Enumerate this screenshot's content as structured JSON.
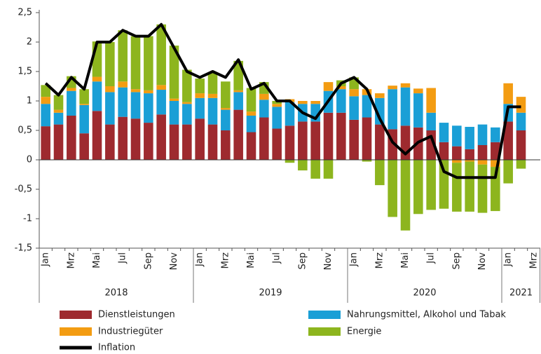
{
  "chart_data": {
    "type": "bar",
    "stacked": true,
    "categories": [
      "Jan",
      null,
      "Mrz",
      null,
      "Mai",
      null,
      "Jul",
      null,
      "Sep",
      null,
      "Nov",
      null,
      "Jan",
      null,
      "Mrz",
      null,
      "Mai",
      null,
      "Jul",
      null,
      "Sep",
      null,
      "Nov",
      null,
      "Jan",
      null,
      "Mrz",
      null,
      "Mai",
      null,
      "Jul",
      null,
      "Sep",
      null,
      "Nov",
      null,
      "Jan",
      null,
      "Mrz"
    ],
    "years": [
      "2018",
      "2019",
      "2020",
      "2021"
    ],
    "ylim": [
      -1.5,
      2.5
    ],
    "yticks": [
      {
        "value": -1.5,
        "label": "-1,5"
      },
      -1,
      {
        "value": -0.5,
        "label": "-0,5"
      },
      0,
      {
        "value": 0.5,
        "label": "0,5"
      },
      1,
      {
        "value": 1.5,
        "label": "1,5"
      },
      2,
      {
        "value": 2.5,
        "label": "2,5"
      }
    ],
    "grid": false,
    "series": [
      {
        "name": "Dienstleistungen",
        "color": "#9e2a2f",
        "values": [
          0.57,
          0.6,
          0.75,
          0.45,
          0.83,
          0.6,
          0.73,
          0.7,
          0.63,
          0.77,
          0.6,
          0.6,
          0.7,
          0.6,
          0.5,
          0.85,
          0.47,
          0.72,
          0.53,
          0.58,
          0.65,
          0.65,
          0.8,
          0.8,
          0.68,
          0.72,
          0.6,
          0.52,
          0.58,
          0.55,
          0.5,
          0.3,
          0.23,
          0.18,
          0.25,
          0.3,
          0.65,
          0.5,
          null
        ]
      },
      {
        "name": "Nahrungsmittel, Alkohol und Tabak",
        "color": "#1a9fd6",
        "values": [
          0.38,
          0.2,
          0.42,
          0.48,
          0.5,
          0.55,
          0.5,
          0.45,
          0.5,
          0.42,
          0.4,
          0.35,
          0.35,
          0.45,
          0.35,
          0.3,
          0.28,
          0.3,
          0.37,
          0.4,
          0.3,
          0.3,
          0.37,
          0.4,
          0.4,
          0.38,
          0.45,
          0.68,
          0.65,
          0.58,
          0.3,
          0.33,
          0.35,
          0.38,
          0.35,
          0.25,
          0.3,
          0.3,
          null
        ]
      },
      {
        "name": "Industriegüter",
        "color": "#f39c12",
        "values": [
          0.12,
          0.05,
          0.05,
          0.02,
          0.08,
          0.1,
          0.1,
          0.05,
          0.05,
          0.08,
          0.04,
          0.03,
          0.08,
          0.07,
          0.03,
          0.03,
          0.07,
          0.1,
          0.05,
          0.05,
          0.05,
          0.05,
          0.15,
          0.05,
          0.12,
          0.1,
          0.08,
          0.06,
          0.07,
          0.08,
          0.42,
          0,
          -0.05,
          -0.03,
          -0.08,
          -0.12,
          0.35,
          0.27,
          null
        ]
      },
      {
        "name": "Energie",
        "color": "#8db51e",
        "values": [
          0.2,
          0.25,
          0.2,
          0.25,
          0.6,
          0.75,
          0.87,
          0.9,
          0.92,
          1.03,
          0.9,
          0.55,
          0.25,
          0.35,
          0.45,
          0.5,
          0.4,
          0.2,
          0.05,
          -0.05,
          -0.18,
          -0.32,
          -0.32,
          0.1,
          0.2,
          -0.03,
          -0.43,
          -0.97,
          -1.2,
          -0.92,
          -0.85,
          -0.83,
          -0.83,
          -0.85,
          -0.82,
          -0.75,
          -0.4,
          -0.15,
          null
        ]
      },
      {
        "name": "Inflation",
        "type": "line",
        "color": "#000000",
        "values": [
          1.3,
          1.1,
          1.4,
          1.2,
          2.0,
          2.0,
          2.2,
          2.1,
          2.1,
          2.3,
          1.9,
          1.5,
          1.4,
          1.5,
          1.4,
          1.7,
          1.2,
          1.3,
          1.0,
          1.0,
          0.8,
          0.7,
          1.0,
          1.3,
          1.4,
          1.2,
          0.7,
          0.3,
          0.1,
          0.3,
          0.4,
          -0.2,
          -0.3,
          -0.3,
          -0.3,
          -0.3,
          0.9,
          0.9,
          null
        ]
      }
    ]
  }
}
